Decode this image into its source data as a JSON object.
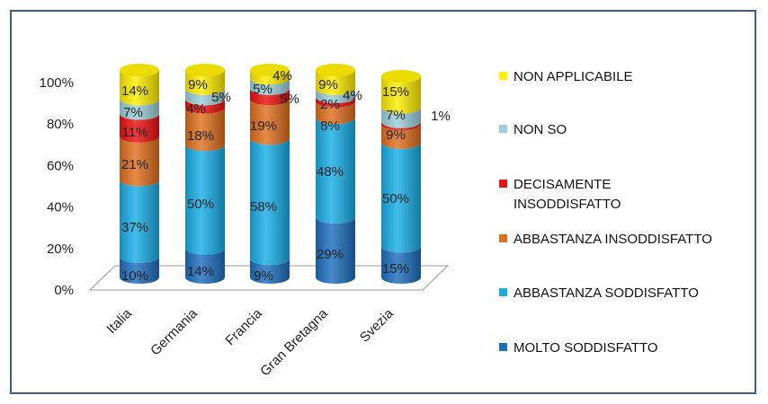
{
  "chart_data": {
    "type": "bar",
    "stacked": true,
    "three_d": true,
    "categories": [
      "Italia",
      "Germania",
      "Francia",
      "Gran Bretagna",
      "Svezia"
    ],
    "yticks": [
      "0%",
      "20%",
      "40%",
      "60%",
      "80%",
      "100%"
    ],
    "ylim": [
      0,
      100
    ],
    "legend_position": "right",
    "series": [
      {
        "name": "MOLTO SODDISFATTO",
        "color": "#1f6fc0",
        "values": [
          10,
          14,
          9,
          29,
          15
        ],
        "labels": [
          "10%",
          "14%",
          "9%",
          "29%",
          "15%"
        ]
      },
      {
        "name": "ABBASTANZA SODDISFATTO",
        "color": "#1aaee8",
        "values": [
          37,
          50,
          58,
          48,
          50
        ],
        "labels": [
          "37%",
          "50%",
          "58%",
          "48%",
          "50%"
        ]
      },
      {
        "name": "ABBASTANZA INSODDISFATTO",
        "color": "#e07020",
        "values": [
          21,
          18,
          19,
          8,
          9
        ],
        "labels": [
          "21%",
          "18%",
          "19%",
          "8%",
          "9%"
        ]
      },
      {
        "name": "DECISAMENTE INSODDISFATTO",
        "legend_lines": [
          "DECISAMENTE",
          "INSODDISFATTO"
        ],
        "color": "#ee1111",
        "values": [
          11,
          4,
          5,
          2,
          1
        ],
        "labels": [
          "11%",
          "4%",
          "5%",
          "2%",
          "1%"
        ]
      },
      {
        "name": "NON SO",
        "color": "#9cd0dc",
        "values": [
          7,
          5,
          5,
          4,
          7
        ],
        "labels": [
          "7%",
          "5%",
          "5%",
          "4%",
          "7%"
        ]
      },
      {
        "name": "NON APPLICABILE",
        "color": "#ffee00",
        "values": [
          14,
          9,
          4,
          9,
          15
        ],
        "labels": [
          "14%",
          "9%",
          "4%",
          "9%",
          "15%"
        ]
      }
    ]
  }
}
